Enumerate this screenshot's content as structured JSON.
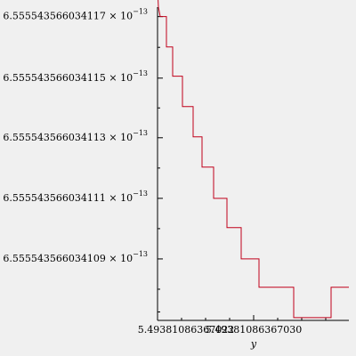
{
  "chart_data": {
    "type": "line",
    "title": "",
    "xlabel": "y",
    "ylabel": "",
    "grid": false,
    "xlim": [
      0,
      215
    ],
    "ylim": [
      0,
      330
    ],
    "x_ticks": [
      {
        "x": 0,
        "mantissa": "5.49381086367022",
        "exponent": ""
      },
      {
        "x": 108,
        "mantissa": "5.49381086367030",
        "exponent": ""
      }
    ],
    "y_ticks": [
      {
        "y": 320,
        "mantissa": "6.555543566034117 × 10",
        "exponent": "−13"
      },
      {
        "y": 255,
        "mantissa": "6.555543566034115 × 10",
        "exponent": "−13"
      },
      {
        "y": 192,
        "mantissa": "6.555543566034113 × 10",
        "exponent": "−13"
      },
      {
        "y": 128,
        "mantissa": "6.555543566034111 × 10",
        "exponent": "−13"
      },
      {
        "y": 64,
        "mantissa": "6.555543566034109 × 10",
        "exponent": "−13"
      }
    ],
    "series": [
      {
        "color": "#c0001a",
        "points": [
          [
            0,
            350
          ],
          [
            1,
            330
          ],
          [
            3,
            320
          ],
          [
            10,
            320
          ],
          [
            10,
            288
          ],
          [
            17,
            288
          ],
          [
            17,
            257
          ],
          [
            28,
            257
          ],
          [
            28,
            225
          ],
          [
            40,
            225
          ],
          [
            40,
            193
          ],
          [
            50,
            193
          ],
          [
            50,
            161
          ],
          [
            63,
            161
          ],
          [
            63,
            128
          ],
          [
            78,
            128
          ],
          [
            78,
            97
          ],
          [
            94,
            97
          ],
          [
            94,
            64
          ],
          [
            114,
            64
          ],
          [
            114,
            34
          ],
          [
            153,
            34
          ],
          [
            153,
            2
          ],
          [
            195,
            2
          ],
          [
            195,
            34
          ],
          [
            215,
            34
          ]
        ]
      }
    ]
  }
}
